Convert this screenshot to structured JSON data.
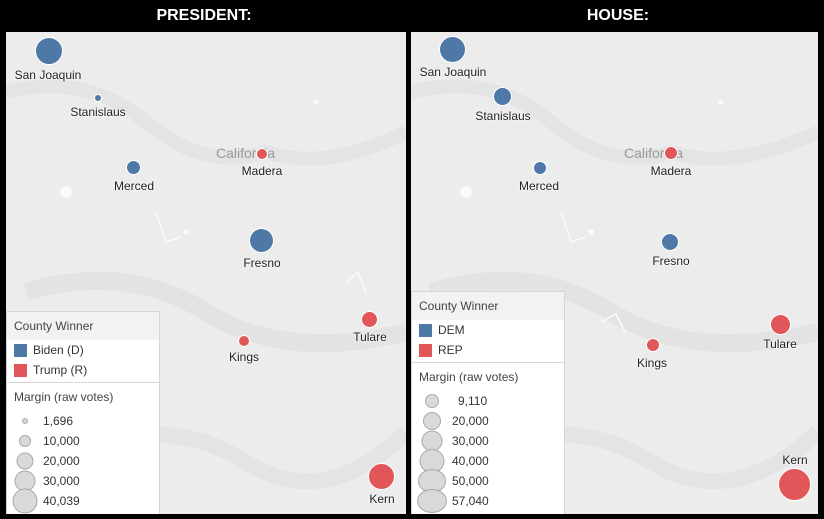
{
  "panels": [
    {
      "title": "PRESIDENT:",
      "state_label": "California",
      "legend": {
        "winner_title": "County Winner",
        "winners": [
          {
            "label": "Biden (D)",
            "color": "#4e79a7"
          },
          {
            "label": "Trump (R)",
            "color": "#e15759"
          }
        ],
        "size_title": "Margin (raw votes)",
        "sizes": [
          "1,696",
          "10,000",
          "20,000",
          "30,000",
          "40,039"
        ]
      },
      "counties": [
        {
          "name": "San Joaquin",
          "party": "dem"
        },
        {
          "name": "Stanislaus",
          "party": "dem"
        },
        {
          "name": "Merced",
          "party": "dem"
        },
        {
          "name": "Madera",
          "party": "rep"
        },
        {
          "name": "Fresno",
          "party": "dem"
        },
        {
          "name": "Tulare",
          "party": "rep"
        },
        {
          "name": "Kings",
          "party": "rep"
        },
        {
          "name": "Kern",
          "party": "rep"
        }
      ]
    },
    {
      "title": "HOUSE:",
      "state_label": "California",
      "legend": {
        "winner_title": "County Winner",
        "winners": [
          {
            "label": "DEM",
            "color": "#4e79a7"
          },
          {
            "label": "REP",
            "color": "#e15759"
          }
        ],
        "size_title": "Margin (raw votes)",
        "sizes": [
          "9,110",
          "20,000",
          "30,000",
          "40,000",
          "50,000",
          "57,040"
        ]
      },
      "counties": [
        {
          "name": "San Joaquin",
          "party": "dem"
        },
        {
          "name": "Stanislaus",
          "party": "dem"
        },
        {
          "name": "Merced",
          "party": "dem"
        },
        {
          "name": "Madera",
          "party": "rep"
        },
        {
          "name": "Fresno",
          "party": "dem"
        },
        {
          "name": "Tulare",
          "party": "rep"
        },
        {
          "name": "Kings",
          "party": "rep"
        },
        {
          "name": "Kern",
          "party": "rep"
        }
      ]
    }
  ]
}
